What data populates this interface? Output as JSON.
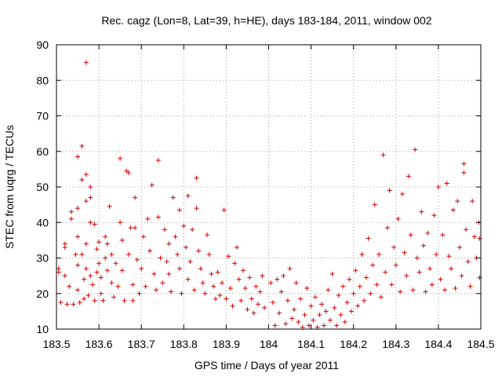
{
  "chart_data": {
    "type": "scatter",
    "title": "Rec. cagz (Lon=8, Lat=39, h=HE), days 183-184, 2011, window 002",
    "xlabel": "GPS time / Days of year 2011",
    "ylabel": "STEC from uqrg / TECUs",
    "xlim": [
      183.5,
      184.5
    ],
    "ylim": [
      10,
      90
    ],
    "xticks": [
      183.5,
      183.6,
      183.7,
      183.8,
      183.9,
      184.0,
      184.1,
      184.2,
      184.3,
      184.4,
      184.5
    ],
    "xtick_labels": [
      "183.5",
      "183.6",
      "183.7",
      "183.8",
      "183.9",
      "184",
      "184.1",
      "184.2",
      "184.3",
      "184.4",
      "184.5"
    ],
    "yticks": [
      10,
      20,
      30,
      40,
      50,
      60,
      70,
      80,
      90
    ],
    "ytick_labels": [
      "10",
      "20",
      "30",
      "40",
      "50",
      "60",
      "70",
      "80",
      "90"
    ],
    "grid": true,
    "marker": "+",
    "color": "#d00000",
    "series": [
      {
        "name": "STEC",
        "points": [
          [
            183.505,
            27.0
          ],
          [
            183.505,
            26.0
          ],
          [
            183.51,
            17.5
          ],
          [
            183.52,
            25.0
          ],
          [
            183.52,
            33.0
          ],
          [
            183.52,
            34.0
          ],
          [
            183.525,
            17.0
          ],
          [
            183.53,
            22.0
          ],
          [
            183.535,
            41.0
          ],
          [
            183.535,
            43.0
          ],
          [
            183.54,
            17.0
          ],
          [
            183.545,
            31.0
          ],
          [
            183.55,
            58.5
          ],
          [
            183.55,
            44.0
          ],
          [
            183.55,
            36.0
          ],
          [
            183.55,
            28.0
          ],
          [
            183.55,
            21.0
          ],
          [
            183.555,
            17.5
          ],
          [
            183.56,
            61.5
          ],
          [
            183.56,
            52.0
          ],
          [
            183.56,
            31.0
          ],
          [
            183.565,
            24.0
          ],
          [
            183.565,
            18.5
          ],
          [
            183.57,
            85.0
          ],
          [
            183.57,
            53.5
          ],
          [
            183.57,
            46.0
          ],
          [
            183.57,
            34.0
          ],
          [
            183.57,
            27.0
          ],
          [
            183.575,
            19.5
          ],
          [
            183.58,
            50.0
          ],
          [
            183.58,
            47.0
          ],
          [
            183.58,
            40.0
          ],
          [
            183.58,
            25.0
          ],
          [
            183.585,
            22.5
          ],
          [
            183.59,
            18.0
          ],
          [
            183.59,
            39.5
          ],
          [
            183.595,
            32.5
          ],
          [
            183.595,
            26.0
          ],
          [
            183.6,
            34.5
          ],
          [
            183.6,
            28.5
          ],
          [
            183.605,
            24.5
          ],
          [
            183.605,
            20.0
          ],
          [
            183.61,
            18.0
          ],
          [
            183.615,
            36.0
          ],
          [
            183.615,
            30.0
          ],
          [
            183.62,
            34.0
          ],
          [
            183.62,
            26.5
          ],
          [
            183.625,
            44.5
          ],
          [
            183.63,
            31.0
          ],
          [
            183.63,
            23.0
          ],
          [
            183.635,
            19.0
          ],
          [
            183.64,
            28.5
          ],
          [
            183.645,
            22.0
          ],
          [
            183.65,
            58.0
          ],
          [
            183.65,
            40.0
          ],
          [
            183.655,
            35.0
          ],
          [
            183.655,
            26.5
          ],
          [
            183.66,
            18.0
          ],
          [
            183.665,
            54.5
          ],
          [
            183.67,
            54.0
          ],
          [
            183.67,
            31.0
          ],
          [
            183.675,
            38.5
          ],
          [
            183.68,
            22.5
          ],
          [
            183.68,
            18.0
          ],
          [
            183.685,
            47.0
          ],
          [
            183.685,
            38.5
          ],
          [
            183.69,
            29.5
          ],
          [
            183.695,
            20.0
          ],
          [
            183.7,
            27.0
          ],
          [
            183.705,
            36.0
          ],
          [
            183.71,
            22.0
          ],
          [
            183.715,
            41.0
          ],
          [
            183.72,
            32.0
          ],
          [
            183.725,
            50.5
          ],
          [
            183.73,
            25.5
          ],
          [
            183.735,
            21.0
          ],
          [
            183.74,
            57.5
          ],
          [
            183.74,
            41.5
          ],
          [
            183.745,
            30.0
          ],
          [
            183.75,
            23.0
          ],
          [
            183.755,
            38.0
          ],
          [
            183.76,
            29.0
          ],
          [
            183.765,
            34.0
          ],
          [
            183.765,
            25.5
          ],
          [
            183.77,
            20.5
          ],
          [
            183.775,
            47.0
          ],
          [
            183.78,
            36.0
          ],
          [
            183.785,
            31.0
          ],
          [
            183.79,
            43.5
          ],
          [
            183.79,
            27.0
          ],
          [
            183.795,
            20.0
          ],
          [
            183.8,
            39.0
          ],
          [
            183.805,
            33.0
          ],
          [
            183.81,
            47.5
          ],
          [
            183.81,
            24.0
          ],
          [
            183.815,
            29.0
          ],
          [
            183.82,
            38.0
          ],
          [
            183.825,
            21.0
          ],
          [
            183.83,
            52.5
          ],
          [
            183.83,
            44.0
          ],
          [
            183.835,
            32.0
          ],
          [
            183.84,
            27.0
          ],
          [
            183.845,
            23.0
          ],
          [
            183.85,
            20.0
          ],
          [
            183.855,
            36.5
          ],
          [
            183.86,
            31.0
          ],
          [
            183.865,
            25.5
          ],
          [
            183.87,
            22.0
          ],
          [
            183.875,
            18.5
          ],
          [
            183.88,
            26.0
          ],
          [
            183.885,
            19.5
          ],
          [
            183.89,
            23.0
          ],
          [
            183.895,
            43.5
          ],
          [
            183.9,
            18.5
          ],
          [
            183.905,
            30.5
          ],
          [
            183.91,
            21.5
          ],
          [
            183.915,
            16.5
          ],
          [
            183.92,
            28.5
          ],
          [
            183.925,
            33.0
          ],
          [
            183.93,
            24.0
          ],
          [
            183.935,
            18.0
          ],
          [
            183.94,
            26.5
          ],
          [
            183.945,
            21.5
          ],
          [
            183.95,
            15.5
          ],
          [
            183.955,
            24.5
          ],
          [
            183.96,
            18.5
          ],
          [
            183.965,
            14.5
          ],
          [
            183.97,
            22.0
          ],
          [
            183.975,
            17.0
          ],
          [
            183.98,
            20.5
          ],
          [
            183.985,
            25.0
          ],
          [
            183.99,
            16.0
          ],
          [
            184.005,
            23.0
          ],
          [
            184.01,
            17.5
          ],
          [
            184.015,
            11.0
          ],
          [
            184.02,
            24.0
          ],
          [
            184.025,
            14.5
          ],
          [
            184.03,
            20.5
          ],
          [
            184.035,
            25.0
          ],
          [
            184.04,
            11.5
          ],
          [
            184.045,
            18.0
          ],
          [
            184.05,
            27.0
          ],
          [
            184.055,
            13.0
          ],
          [
            184.06,
            15.5
          ],
          [
            184.065,
            23.0
          ],
          [
            184.07,
            12.0
          ],
          [
            184.075,
            18.5
          ],
          [
            184.08,
            10.5
          ],
          [
            184.085,
            14.0
          ],
          [
            184.09,
            21.5
          ],
          [
            184.095,
            11.0
          ],
          [
            184.1,
            16.5
          ],
          [
            184.105,
            12.5
          ],
          [
            184.11,
            19.0
          ],
          [
            184.115,
            10.5
          ],
          [
            184.12,
            14.0
          ],
          [
            184.125,
            17.0
          ],
          [
            184.13,
            11.0
          ],
          [
            184.135,
            15.0
          ],
          [
            184.14,
            21.0
          ],
          [
            184.145,
            12.5
          ],
          [
            184.15,
            25.5
          ],
          [
            184.155,
            16.0
          ],
          [
            184.16,
            11.0
          ],
          [
            184.165,
            19.5
          ],
          [
            184.17,
            14.0
          ],
          [
            184.175,
            22.0
          ],
          [
            184.18,
            12.0
          ],
          [
            184.185,
            17.5
          ],
          [
            184.19,
            24.0
          ],
          [
            184.195,
            15.0
          ],
          [
            184.2,
            20.0
          ],
          [
            184.205,
            26.5
          ],
          [
            184.21,
            16.5
          ],
          [
            184.215,
            22.0
          ],
          [
            184.22,
            31.0
          ],
          [
            184.225,
            18.0
          ],
          [
            184.23,
            24.5
          ],
          [
            184.235,
            35.5
          ],
          [
            184.24,
            20.0
          ],
          [
            184.245,
            28.0
          ],
          [
            184.25,
            45.0
          ],
          [
            184.255,
            22.5
          ],
          [
            184.26,
            31.0
          ],
          [
            184.265,
            19.0
          ],
          [
            184.27,
            59.0
          ],
          [
            184.275,
            26.0
          ],
          [
            184.28,
            38.5
          ],
          [
            184.285,
            49.0
          ],
          [
            184.29,
            22.5
          ],
          [
            184.295,
            33.0
          ],
          [
            184.3,
            28.0
          ],
          [
            184.305,
            41.0
          ],
          [
            184.31,
            20.5
          ],
          [
            184.315,
            48.0
          ],
          [
            184.32,
            31.5
          ],
          [
            184.325,
            25.0
          ],
          [
            184.33,
            53.0
          ],
          [
            184.335,
            36.5
          ],
          [
            184.34,
            21.0
          ],
          [
            184.345,
            60.5
          ],
          [
            184.35,
            30.0
          ],
          [
            184.355,
            26.0
          ],
          [
            184.36,
            43.0
          ],
          [
            184.365,
            33.5
          ],
          [
            184.37,
            20.5
          ],
          [
            184.375,
            37.0
          ],
          [
            184.38,
            27.0
          ],
          [
            184.385,
            22.5
          ],
          [
            184.39,
            42.0
          ],
          [
            184.395,
            31.0
          ],
          [
            184.4,
            50.0
          ],
          [
            184.405,
            24.0
          ],
          [
            184.41,
            36.5
          ],
          [
            184.415,
            21.0
          ],
          [
            184.42,
            51.0
          ],
          [
            184.425,
            30.5
          ],
          [
            184.43,
            27.0
          ],
          [
            184.435,
            43.5
          ],
          [
            184.44,
            21.5
          ],
          [
            184.445,
            46.0
          ],
          [
            184.45,
            33.0
          ],
          [
            184.455,
            25.0
          ],
          [
            184.46,
            56.5
          ],
          [
            184.46,
            54.0
          ],
          [
            184.465,
            38.0
          ],
          [
            184.47,
            29.0
          ],
          [
            184.475,
            22.0
          ],
          [
            184.48,
            46.0
          ],
          [
            184.485,
            36.0
          ],
          [
            184.49,
            30.0
          ],
          [
            184.495,
            40.0
          ],
          [
            184.497,
            35.5
          ],
          [
            184.497,
            24.5
          ]
        ]
      }
    ]
  }
}
